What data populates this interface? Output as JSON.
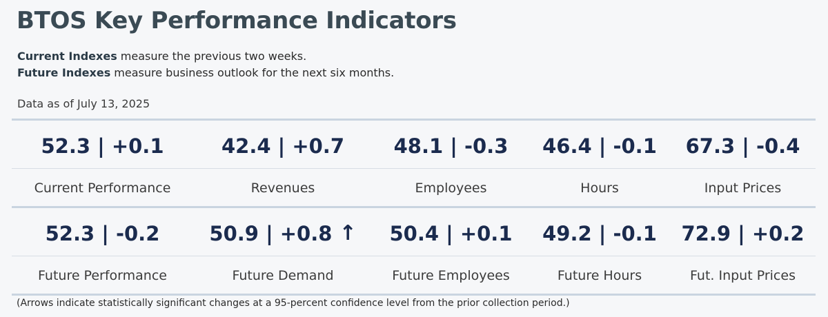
{
  "header": {
    "title": "BTOS Key Performance Indicators",
    "current_bold": "Current Indexes",
    "current_text": " measure the previous two weeks.",
    "future_bold": "Future Indexes",
    "future_text": " measure business outlook for the next six months.",
    "as_of": "Data as of July 13, 2025"
  },
  "current_row": [
    {
      "value": "52.3 | +0.1",
      "label": "Current Performance"
    },
    {
      "value": "42.4 | +0.7",
      "label": "Revenues"
    },
    {
      "value": "48.1 | -0.3",
      "label": "Employees"
    },
    {
      "value": "46.4 | -0.1",
      "label": "Hours"
    },
    {
      "value": "67.3 | -0.4",
      "label": "Input Prices"
    }
  ],
  "future_row": [
    {
      "value": "52.3 | -0.2",
      "label": "Future Performance"
    },
    {
      "value": "50.9 | +0.8",
      "label": "Future Demand",
      "arrow": "↑"
    },
    {
      "value": "50.4 | +0.1",
      "label": "Future Employees"
    },
    {
      "value": "49.2 | -0.1",
      "label": "Future Hours"
    },
    {
      "value": "72.9 | +0.2",
      "label": "Fut. Input Prices"
    }
  ],
  "footnote": "(Arrows indicate statistically significant changes at a 95-percent confidence level from the prior collection period.)",
  "icons": {
    "significance_arrow": "up-arrow-icon"
  },
  "colors": {
    "value_text": "#1b2b4e",
    "title_text": "#3a4a54",
    "rule": "#c9d4e0"
  }
}
